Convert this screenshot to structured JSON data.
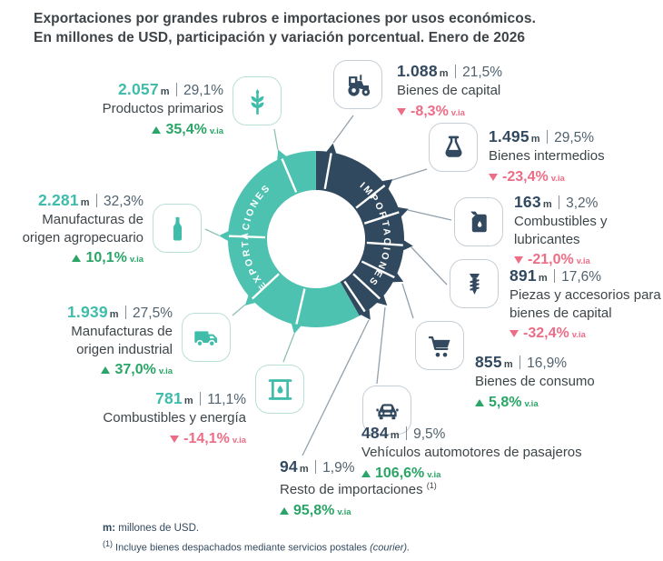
{
  "title": {
    "line1": "Exportaciones por grandes rubros e importaciones por usos económicos.",
    "line2": "En millones de USD, participación y variación porcentual. Enero de 2026"
  },
  "donut": {
    "exports_label": "EXPORTACIONES",
    "imports_label": "IMPORTACIONES"
  },
  "palette": {
    "exports": "#4ec2b0",
    "imports": "#31495e",
    "up": "#2ba567",
    "down": "#ec6d86",
    "line_exports": "#8fbfb7",
    "line_imports": "#93a1ac"
  },
  "chart_data": {
    "type": "pie",
    "title": "Exportaciones por grandes rubros e importaciones por usos económicos. En millones de USD, participación y variación porcentual. Enero de 2026",
    "unit": "millones de USD",
    "period": "Enero de 2026",
    "legend_position": "on-ring",
    "series": [
      {
        "name": "Exportaciones",
        "color": "#4ec2b0",
        "items": [
          {
            "label": "Productos primarios",
            "value_musd": 2057,
            "share_pct": 29.1,
            "yoy_pct": 35.4
          },
          {
            "label": "Manufacturas de origen agropecuario",
            "value_musd": 2281,
            "share_pct": 32.3,
            "yoy_pct": 10.1
          },
          {
            "label": "Manufacturas de origen industrial",
            "value_musd": 1939,
            "share_pct": 27.5,
            "yoy_pct": 37.0
          },
          {
            "label": "Combustibles y energía",
            "value_musd": 781,
            "share_pct": 11.1,
            "yoy_pct": -14.1
          }
        ]
      },
      {
        "name": "Importaciones",
        "color": "#31495e",
        "items": [
          {
            "label": "Bienes de capital",
            "value_musd": 1088,
            "share_pct": 21.5,
            "yoy_pct": -8.3
          },
          {
            "label": "Bienes intermedios",
            "value_musd": 1495,
            "share_pct": 29.5,
            "yoy_pct": -23.4
          },
          {
            "label": "Combustibles y lubricantes",
            "value_musd": 163,
            "share_pct": 3.2,
            "yoy_pct": -21.0
          },
          {
            "label": "Piezas y accesorios para bienes de capital",
            "value_musd": 891,
            "share_pct": 17.6,
            "yoy_pct": -32.4
          },
          {
            "label": "Bienes de consumo",
            "value_musd": 855,
            "share_pct": 16.9,
            "yoy_pct": 5.8
          },
          {
            "label": "Vehículos automotores de pasajeros",
            "value_musd": 484,
            "share_pct": 9.5,
            "yoy_pct": 106.6
          },
          {
            "label": "Resto de importaciones",
            "value_musd": 94,
            "share_pct": 1.9,
            "yoy_pct": 95.8
          }
        ]
      }
    ]
  },
  "callouts": {
    "primarios": {
      "value": "2.057",
      "unit": "m",
      "share": "29,1%",
      "name": "Productos primarios",
      "change": "35,4%",
      "suffix": "v.ia"
    },
    "agropecuario": {
      "value": "2.281",
      "unit": "m",
      "share": "32,3%",
      "name": "Manufacturas de origen agropecuario",
      "change": "10,1%",
      "suffix": "v.ia"
    },
    "industrial": {
      "value": "1.939",
      "unit": "m",
      "share": "27,5%",
      "name": "Manufacturas de origen industrial",
      "change": "37,0%",
      "suffix": "v.ia"
    },
    "energia": {
      "value": "781",
      "unit": "m",
      "share": "11,1%",
      "name": "Combustibles y energía",
      "change": "-14,1%",
      "suffix": "v.ia"
    },
    "capital": {
      "value": "1.088",
      "unit": "m",
      "share": "21,5%",
      "name": "Bienes de capital",
      "change": "-8,3%",
      "suffix": "v.ia"
    },
    "intermedios": {
      "value": "1.495",
      "unit": "m",
      "share": "29,5%",
      "name": "Bienes intermedios",
      "change": "-23,4%",
      "suffix": "v.ia"
    },
    "lubricantes": {
      "value": "163",
      "unit": "m",
      "share": "3,2%",
      "name": "Combustibles y lubricantes",
      "change": "-21,0%",
      "suffix": "v.ia"
    },
    "piezas": {
      "value": "891",
      "unit": "m",
      "share": "17,6%",
      "name": "Piezas y accesorios para bienes de capital",
      "change": "-32,4%",
      "suffix": "v.ia"
    },
    "consumo": {
      "value": "855",
      "unit": "m",
      "share": "16,9%",
      "name": "Bienes de consumo",
      "change": "5,8%",
      "suffix": "v.ia"
    },
    "vehiculos": {
      "value": "484",
      "unit": "m",
      "share": "9,5%",
      "name": "Vehículos automotores de pasajeros",
      "change": "106,6%",
      "suffix": "v.ia"
    },
    "resto": {
      "value": "94",
      "unit": "m",
      "share": "1,9%",
      "name": "Resto de importaciones",
      "note_ref": "(1)",
      "change": "95,8%",
      "suffix": "v.ia"
    }
  },
  "footer": {
    "unit_term": "m:",
    "unit_note": " millones de USD.",
    "note_ref": "(1)",
    "note": " Incluye bienes despachados mediante servicios postales ",
    "note_italic": "(courier)."
  }
}
